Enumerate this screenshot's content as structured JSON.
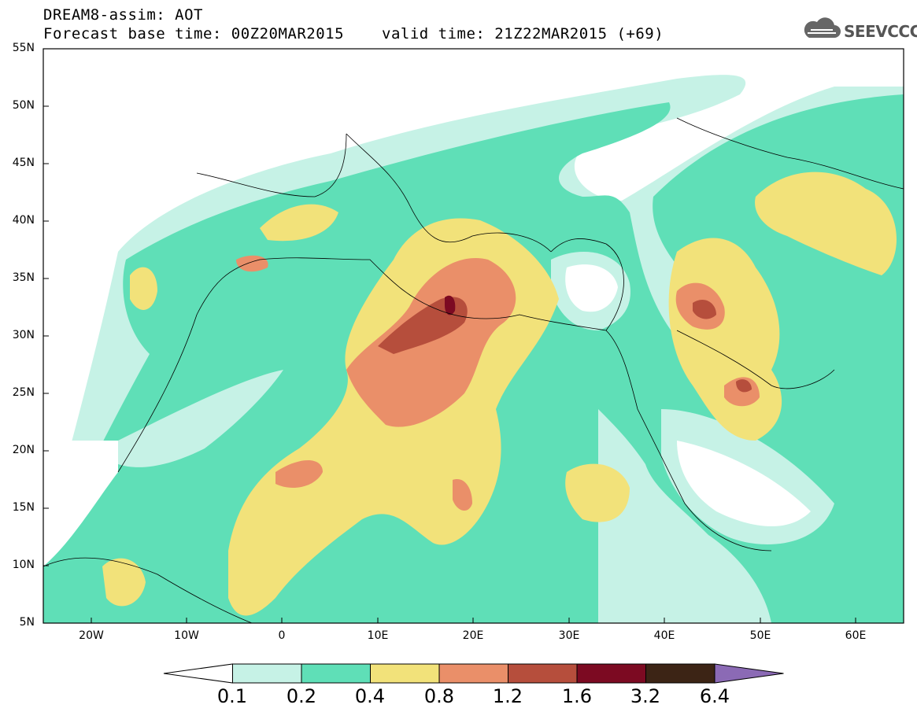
{
  "header": {
    "title": "DREAM8-assim: AOT",
    "base_time": "Forecast base time: 00Z20MAR2015",
    "valid_time": "valid time: 21Z22MAR2015 (+69)"
  },
  "logo": {
    "text": "SEEVCCC",
    "icon": "cloud-logo-icon"
  },
  "axes": {
    "lat_labels": [
      "55N",
      "50N",
      "45N",
      "40N",
      "35N",
      "30N",
      "25N",
      "20N",
      "15N",
      "10N",
      "5N"
    ],
    "lon_labels": [
      "20W",
      "10W",
      "0",
      "10E",
      "20E",
      "30E",
      "40E",
      "50E",
      "60E"
    ]
  },
  "colorbar": {
    "labels": [
      "0.1",
      "0.2",
      "0.4",
      "0.8",
      "1.2",
      "1.6",
      "3.2",
      "6.4"
    ],
    "colors": [
      "#ffffff",
      "#c6f2e6",
      "#5fdfb7",
      "#f2e27a",
      "#ea8f69",
      "#b64e3c",
      "#7c0a22",
      "#3c2415",
      "#8b6ab5"
    ]
  }
}
